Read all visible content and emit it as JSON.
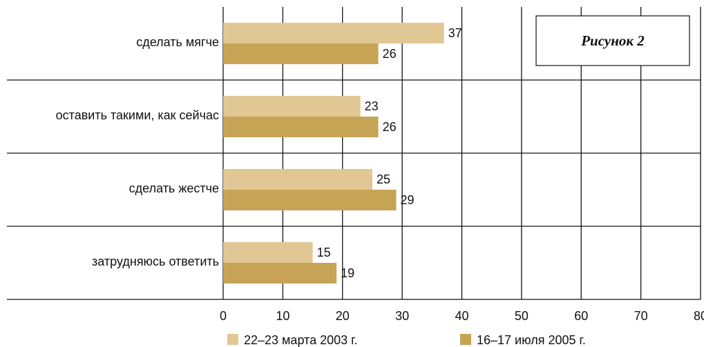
{
  "figure_label": "Рисунок 2",
  "colors": {
    "series_1": "#e0c794",
    "series_2": "#c7a455",
    "grid": "#111111",
    "text": "#111111"
  },
  "chart_data": {
    "type": "bar",
    "orientation": "horizontal",
    "categories": [
      "сделать мягче",
      "оставить такими, как сейчас",
      "сделать жестче",
      "затрудняюсь ответить"
    ],
    "series": [
      {
        "name": "22–23 марта 2003 г.",
        "values": [
          37,
          23,
          25,
          15
        ]
      },
      {
        "name": "16–17 июля 2005 г.",
        "values": [
          26,
          26,
          29,
          19
        ]
      }
    ],
    "title": "",
    "xlabel": "",
    "ylabel": "",
    "xlim": [
      0,
      80
    ],
    "x_ticks": [
      0,
      10,
      20,
      30,
      40,
      50,
      60,
      70,
      80
    ],
    "grid": true,
    "legend_position": "bottom"
  }
}
